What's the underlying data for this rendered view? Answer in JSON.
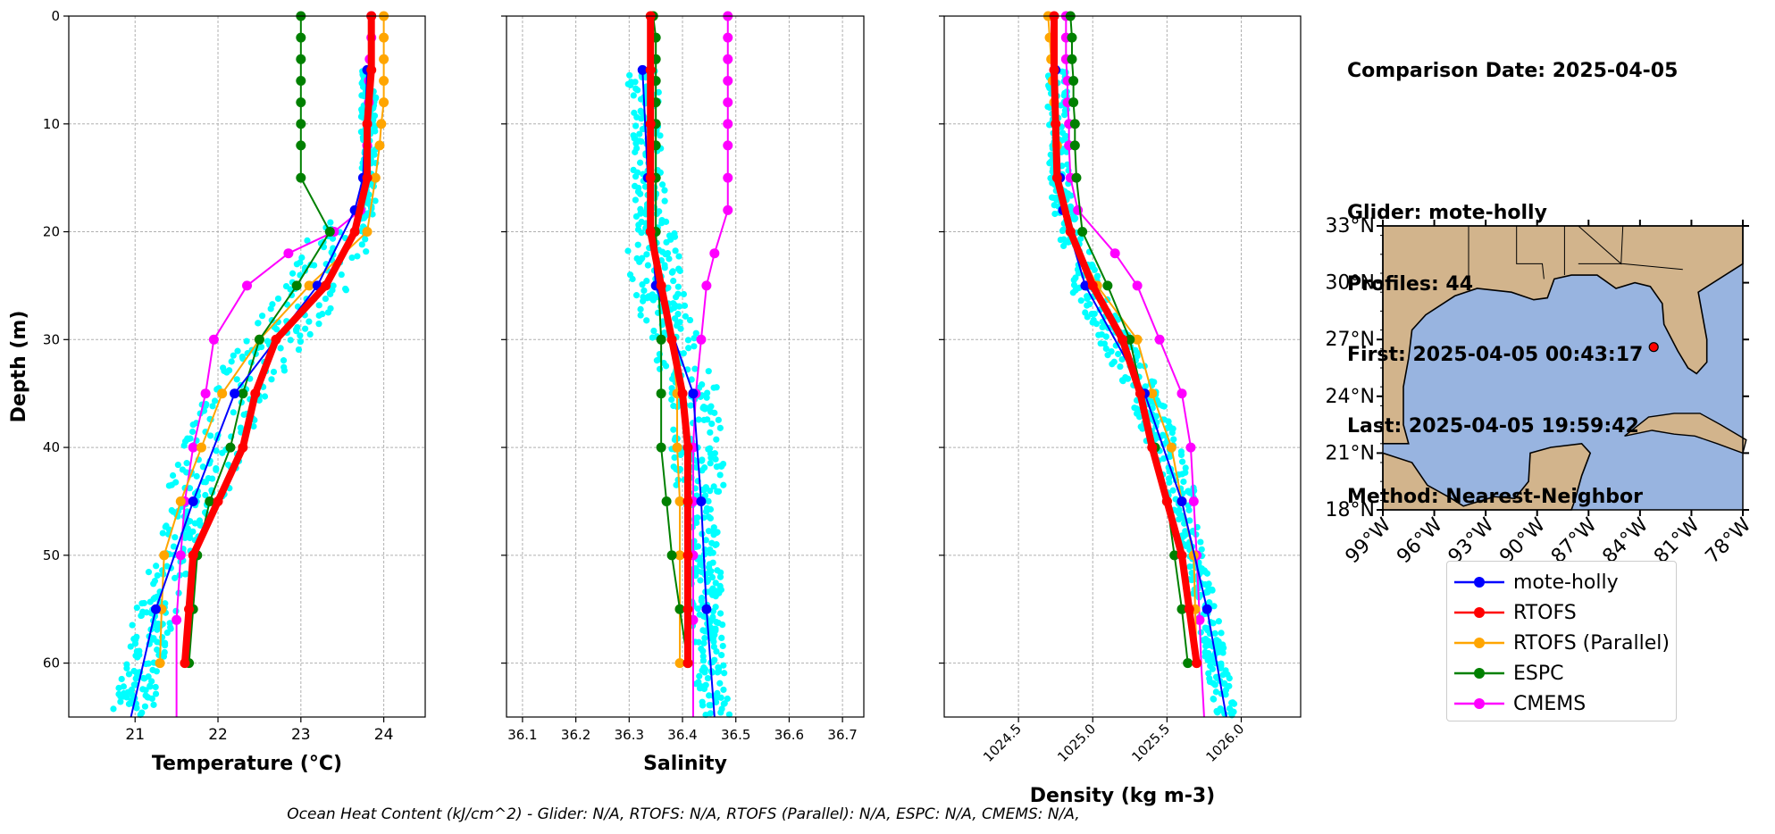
{
  "info": {
    "comparison": "Comparison Date: 2025-04-05",
    "glider": "Glider: mote-holly",
    "profiles": "Profiles: 44",
    "first": "First: 2025-04-05 00:43:17",
    "last": "Last: 2025-04-05 19:59:42",
    "method": "Method: Nearest-Neighbor"
  },
  "footer": "Ocean Heat Content (kJ/cm^2) - Glider: N/A,  RTOFS: N/A,  RTOFS (Parallel): N/A,  ESPC: N/A,  CMEMS: N/A,",
  "colors": {
    "mote-holly": "#0000ff",
    "RTOFS": "#ff0000",
    "RTOFS (Parallel)": "#ffa500",
    "ESPC": "#008000",
    "CMEMS": "#ff00ff",
    "glider_obs": "#00ffff",
    "land": "#d2b48c",
    "ocean": "#98b4e0"
  },
  "legend": [
    "mote-holly",
    "RTOFS",
    "RTOFS (Parallel)",
    "ESPC",
    "CMEMS"
  ],
  "chart_data": [
    {
      "type": "line",
      "xlabel": "Temperature (°C)",
      "ylabel": "Depth (m)",
      "xlim": [
        20.2,
        24.5
      ],
      "ylim": [
        65,
        0
      ],
      "xticks": [
        21,
        22,
        23,
        24
      ],
      "yticks": [
        0,
        10,
        20,
        30,
        40,
        50,
        60
      ],
      "grid": true,
      "series": [
        {
          "name": "mote-holly",
          "depth": [
            5,
            15,
            18,
            25,
            35,
            45,
            55,
            65
          ],
          "values": [
            23.8,
            23.75,
            23.65,
            23.2,
            22.2,
            21.7,
            21.25,
            20.95
          ]
        },
        {
          "name": "RTOFS",
          "depth": [
            0,
            5,
            10,
            15,
            20,
            25,
            30,
            35,
            40,
            45,
            50,
            55,
            60
          ],
          "values": [
            23.85,
            23.85,
            23.8,
            23.8,
            23.65,
            23.3,
            22.7,
            22.45,
            22.3,
            22.0,
            21.7,
            21.65,
            21.6
          ]
        },
        {
          "name": "RTOFS (Parallel)",
          "depth": [
            0,
            2,
            4,
            6,
            8,
            10,
            12,
            15,
            20,
            25,
            30,
            35,
            40,
            45,
            50,
            55,
            60
          ],
          "values": [
            24.0,
            24.0,
            24.0,
            24.0,
            24.0,
            23.97,
            23.95,
            23.9,
            23.8,
            23.1,
            22.5,
            22.05,
            21.8,
            21.55,
            21.35,
            21.32,
            21.3
          ]
        },
        {
          "name": "ESPC",
          "depth": [
            0,
            2,
            4,
            6,
            8,
            10,
            12,
            15,
            20,
            25,
            30,
            35,
            40,
            45,
            50,
            55,
            60
          ],
          "values": [
            23.0,
            23.0,
            23.0,
            23.0,
            23.0,
            23.0,
            23.0,
            23.0,
            23.35,
            22.95,
            22.5,
            22.3,
            22.15,
            21.9,
            21.75,
            21.7,
            21.65
          ]
        },
        {
          "name": "CMEMS",
          "depth": [
            0,
            2,
            4,
            6,
            8,
            10,
            12,
            15,
            18,
            20,
            22,
            25,
            30,
            35,
            40,
            45,
            50,
            56,
            60,
            65
          ],
          "values": [
            23.85,
            23.85,
            23.83,
            23.82,
            23.82,
            23.8,
            23.8,
            23.78,
            23.72,
            23.4,
            22.85,
            22.35,
            21.95,
            21.85,
            21.7,
            21.6,
            21.55,
            21.5,
            21.5,
            21.5
          ]
        }
      ]
    },
    {
      "type": "line",
      "xlabel": "Salinity",
      "xlim": [
        36.07,
        36.74
      ],
      "ylim": [
        65,
        0
      ],
      "xticks": [
        36.1,
        36.2,
        36.3,
        36.4,
        36.5,
        36.6,
        36.7
      ],
      "yticks": [
        0,
        10,
        20,
        30,
        40,
        50,
        60
      ],
      "grid": true,
      "series": [
        {
          "name": "mote-holly",
          "depth": [
            5,
            15,
            25,
            35,
            45,
            55,
            65
          ],
          "values": [
            36.325,
            36.335,
            36.35,
            36.42,
            36.435,
            36.445,
            36.46
          ]
        },
        {
          "name": "RTOFS",
          "depth": [
            0,
            5,
            10,
            15,
            20,
            25,
            30,
            35,
            40,
            45,
            50,
            55,
            60
          ],
          "values": [
            36.34,
            36.34,
            36.34,
            36.34,
            36.34,
            36.36,
            36.38,
            36.4,
            36.41,
            36.41,
            36.41,
            36.41,
            36.41
          ]
        },
        {
          "name": "RTOFS (Parallel)",
          "depth": [
            0,
            2,
            4,
            6,
            8,
            10,
            12,
            15,
            20,
            25,
            30,
            35,
            40,
            45,
            50,
            55,
            60
          ],
          "values": [
            36.345,
            36.345,
            36.345,
            36.345,
            36.345,
            36.345,
            36.345,
            36.345,
            36.345,
            36.36,
            36.38,
            36.39,
            36.39,
            36.395,
            36.395,
            36.395,
            36.395
          ]
        },
        {
          "name": "ESPC",
          "depth": [
            0,
            2,
            4,
            6,
            8,
            10,
            12,
            15,
            20,
            25,
            30,
            35,
            40,
            45,
            50,
            55,
            60
          ],
          "values": [
            36.345,
            36.35,
            36.35,
            36.35,
            36.35,
            36.35,
            36.35,
            36.35,
            36.35,
            36.355,
            36.36,
            36.36,
            36.36,
            36.37,
            36.38,
            36.395,
            36.41
          ]
        },
        {
          "name": "CMEMS",
          "depth": [
            0,
            2,
            4,
            6,
            8,
            10,
            12,
            15,
            18,
            22,
            25,
            30,
            35,
            40,
            45,
            50,
            56,
            60,
            65
          ],
          "values": [
            36.485,
            36.485,
            36.485,
            36.485,
            36.485,
            36.485,
            36.485,
            36.485,
            36.485,
            36.46,
            36.445,
            36.435,
            36.425,
            36.42,
            36.42,
            36.42,
            36.42,
            36.42,
            36.42
          ]
        }
      ]
    },
    {
      "type": "line",
      "xlabel": "Density (kg m-3)",
      "xlim": [
        1024.0,
        1026.4
      ],
      "ylim": [
        65,
        0
      ],
      "xticks": [
        "1024.5",
        "1025.0",
        "1025.5",
        "1026.0"
      ],
      "yticks": [
        0,
        10,
        20,
        30,
        40,
        50,
        60
      ],
      "grid": true,
      "series": [
        {
          "name": "mote-holly",
          "depth": [
            5,
            15,
            18,
            25,
            35,
            45,
            55,
            65
          ],
          "values": [
            1024.75,
            1024.78,
            1024.8,
            1024.95,
            1025.35,
            1025.6,
            1025.77,
            1025.9
          ]
        },
        {
          "name": "RTOFS",
          "depth": [
            0,
            5,
            10,
            15,
            20,
            25,
            30,
            35,
            40,
            45,
            50,
            55,
            60
          ],
          "values": [
            1024.74,
            1024.74,
            1024.75,
            1024.76,
            1024.85,
            1025.0,
            1025.2,
            1025.32,
            1025.4,
            1025.5,
            1025.6,
            1025.65,
            1025.7
          ]
        },
        {
          "name": "RTOFS (Parallel)",
          "depth": [
            0,
            2,
            4,
            6,
            8,
            10,
            12,
            15,
            20,
            25,
            30,
            35,
            40,
            45,
            50,
            55,
            60
          ],
          "values": [
            1024.7,
            1024.71,
            1024.72,
            1024.73,
            1024.74,
            1024.75,
            1024.76,
            1024.77,
            1024.85,
            1025.03,
            1025.3,
            1025.4,
            1025.53,
            1025.6,
            1025.68,
            1025.69,
            1025.7
          ]
        },
        {
          "name": "ESPC",
          "depth": [
            0,
            2,
            4,
            6,
            8,
            10,
            12,
            15,
            20,
            25,
            30,
            35,
            40,
            45,
            50,
            55,
            60
          ],
          "values": [
            1024.85,
            1024.86,
            1024.86,
            1024.87,
            1024.87,
            1024.88,
            1024.88,
            1024.89,
            1024.93,
            1025.1,
            1025.25,
            1025.33,
            1025.42,
            1025.5,
            1025.55,
            1025.6,
            1025.64
          ]
        },
        {
          "name": "CMEMS",
          "depth": [
            0,
            2,
            4,
            6,
            8,
            10,
            12,
            15,
            18,
            22,
            25,
            30,
            35,
            40,
            45,
            50,
            56,
            60,
            65
          ],
          "values": [
            1024.82,
            1024.82,
            1024.82,
            1024.83,
            1024.83,
            1024.84,
            1024.84,
            1024.85,
            1024.9,
            1025.15,
            1025.3,
            1025.45,
            1025.6,
            1025.66,
            1025.68,
            1025.7,
            1025.72,
            1025.73,
            1025.75
          ]
        }
      ]
    }
  ],
  "map": {
    "lat_labels": [
      "33°N",
      "30°N",
      "27°N",
      "24°N",
      "21°N",
      "18°N"
    ],
    "lon_labels": [
      "99°W",
      "96°W",
      "93°W",
      "90°W",
      "87°W",
      "84°W",
      "81°W",
      "78°W"
    ],
    "lon_range": [
      -99,
      -78
    ],
    "lat_range": [
      18,
      33
    ],
    "glider_position": {
      "lon": -83.2,
      "lat": 26.6
    }
  }
}
